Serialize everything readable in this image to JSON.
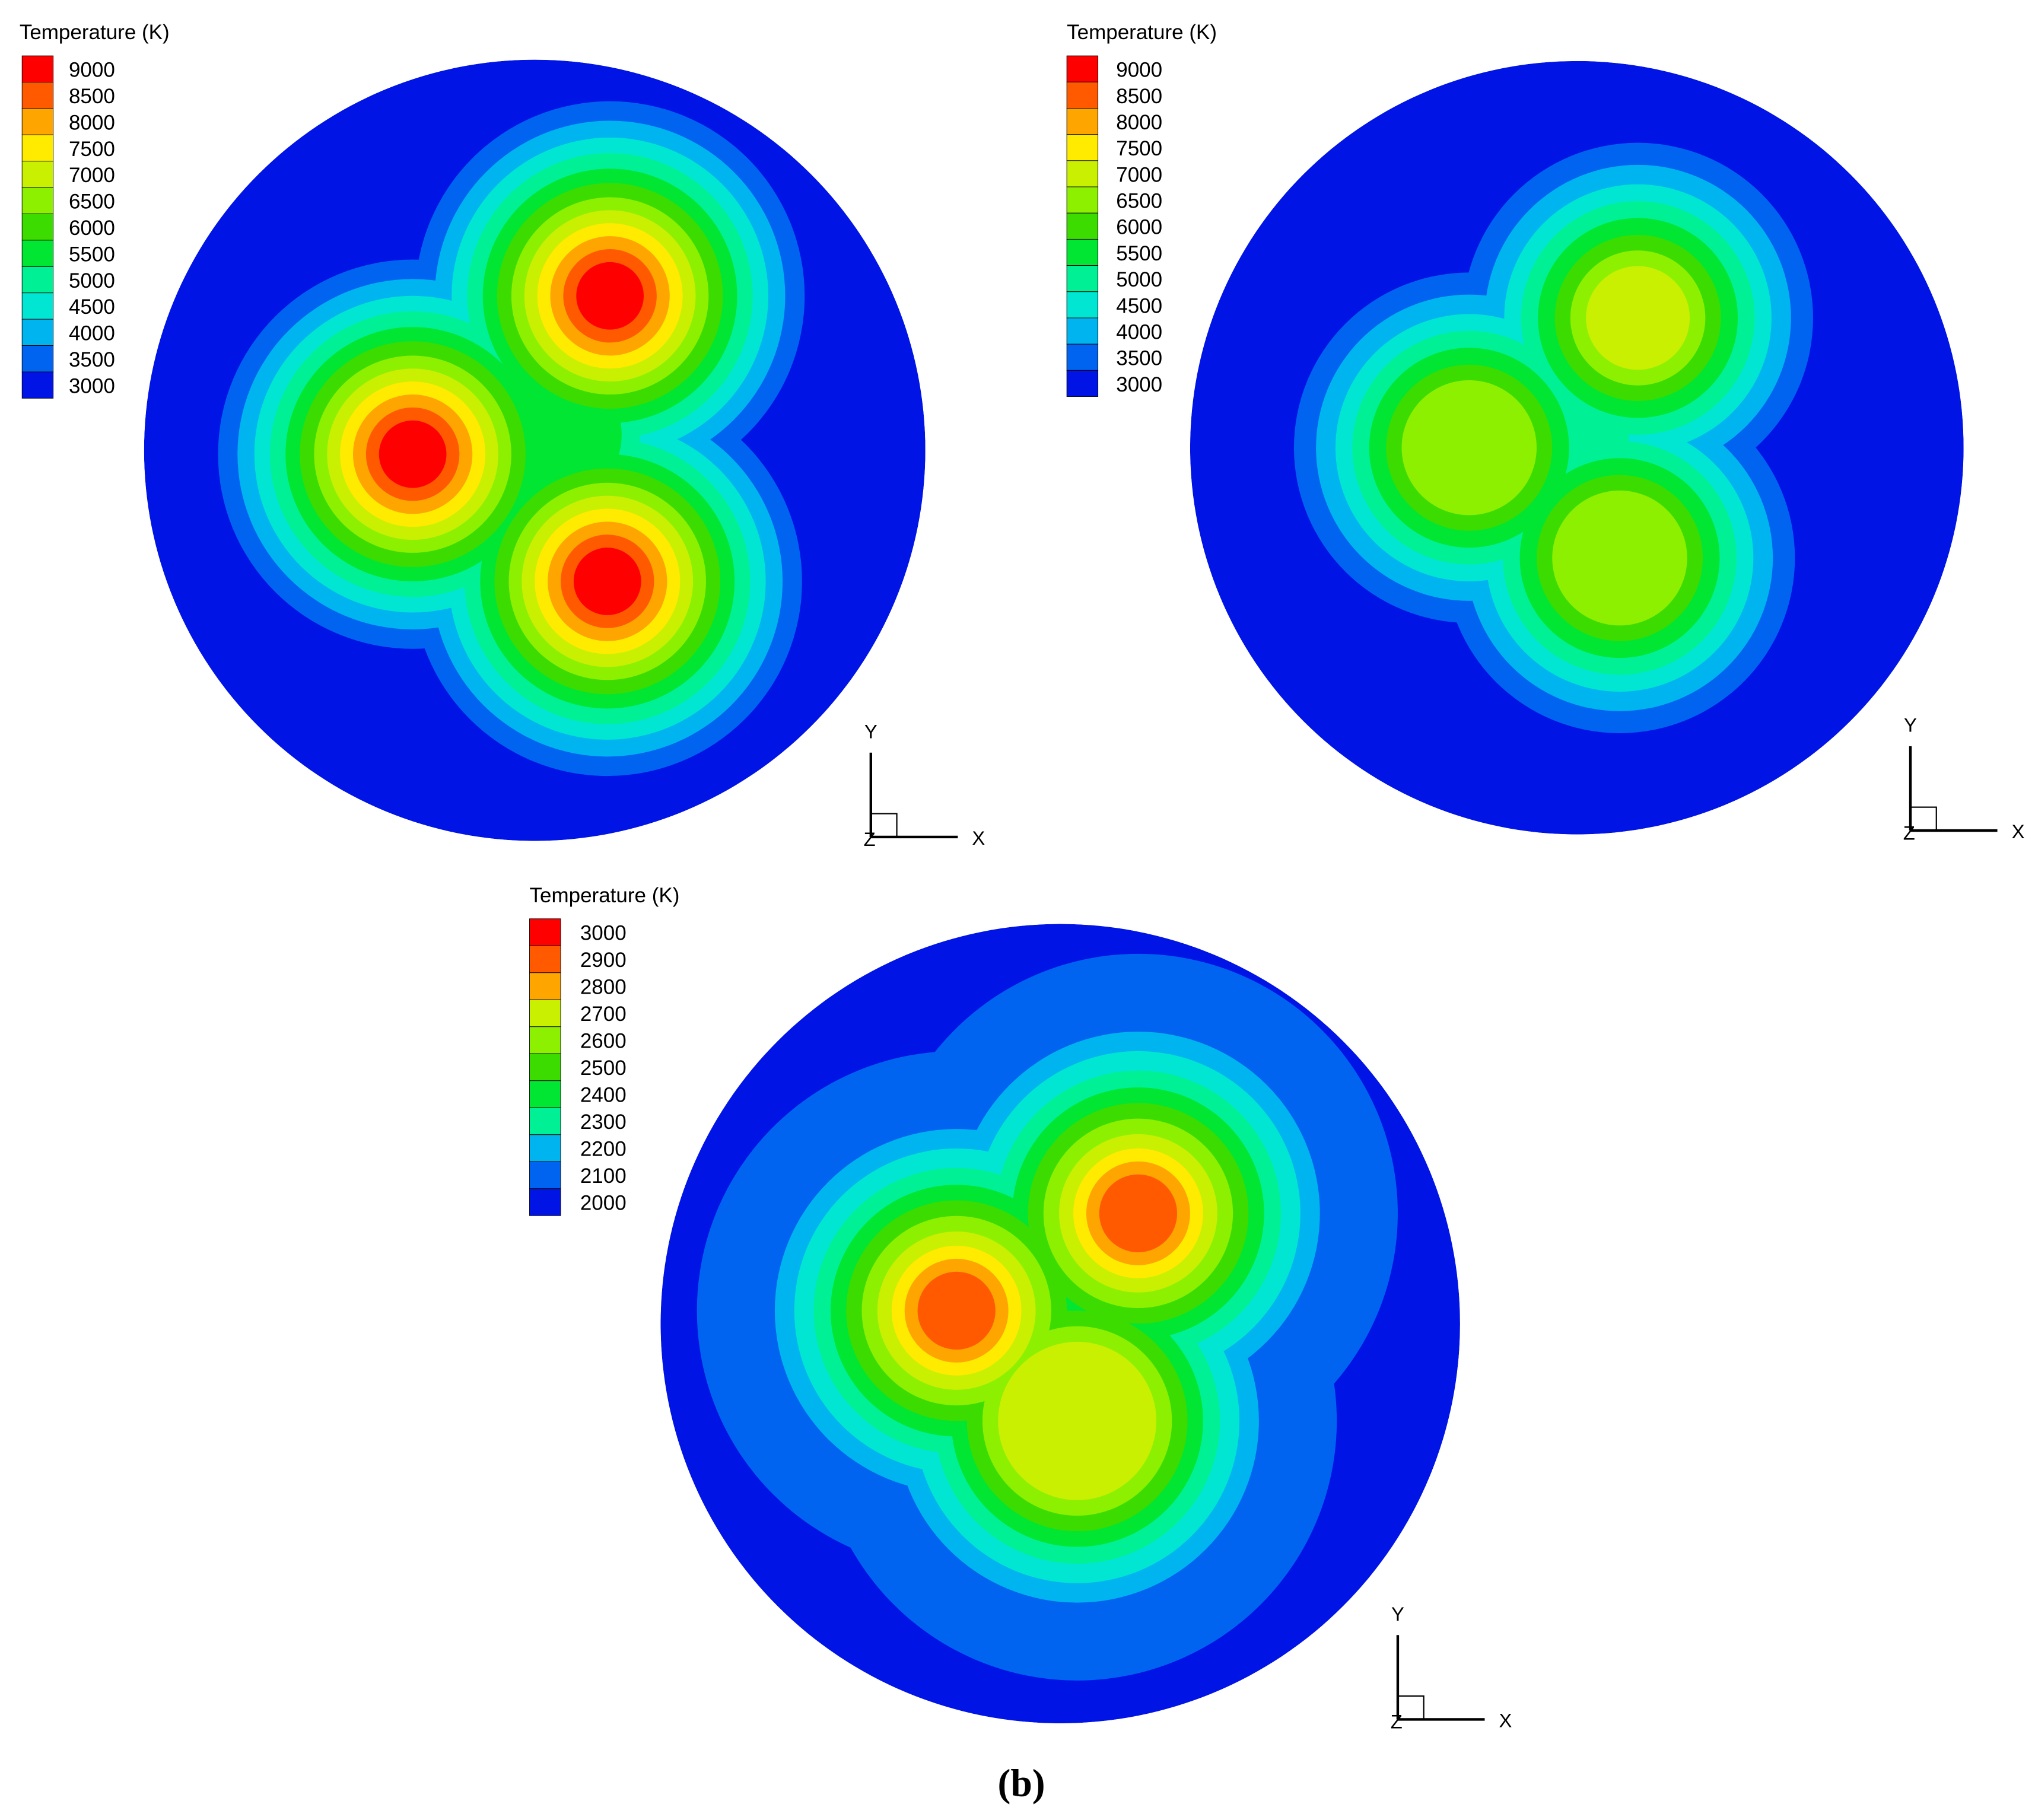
{
  "panels": [
    {
      "legend": {
        "title": "Temperature (K)",
        "levels": [
          9000,
          8500,
          8000,
          7500,
          7000,
          6500,
          6000,
          5500,
          5000,
          4500,
          4000,
          3500,
          3000
        ]
      },
      "axes": {
        "y": "Y",
        "x": "X",
        "z": "Z"
      }
    },
    {
      "legend": {
        "title": "Temperature (K)",
        "levels": [
          9000,
          8500,
          8000,
          7500,
          7000,
          6500,
          6000,
          5500,
          5000,
          4500,
          4000,
          3500,
          3000
        ]
      },
      "axes": {
        "y": "Y",
        "x": "X",
        "z": "Z"
      }
    },
    {
      "legend": {
        "title": "Temperature (K)",
        "levels": [
          3000,
          2900,
          2800,
          2700,
          2600,
          2500,
          2400,
          2300,
          2200,
          2100,
          2000
        ]
      },
      "axes": {
        "y": "Y",
        "x": "X",
        "z": "Z"
      }
    }
  ],
  "colors": [
    "#ff0000",
    "#ff5a00",
    "#ffa500",
    "#ffeb00",
    "#c8f000",
    "#8cf000",
    "#3cdc00",
    "#00e632",
    "#00f096",
    "#00e6d2",
    "#00b4f0",
    "#0064f0",
    "#0014e6"
  ],
  "caption": "(b)"
}
